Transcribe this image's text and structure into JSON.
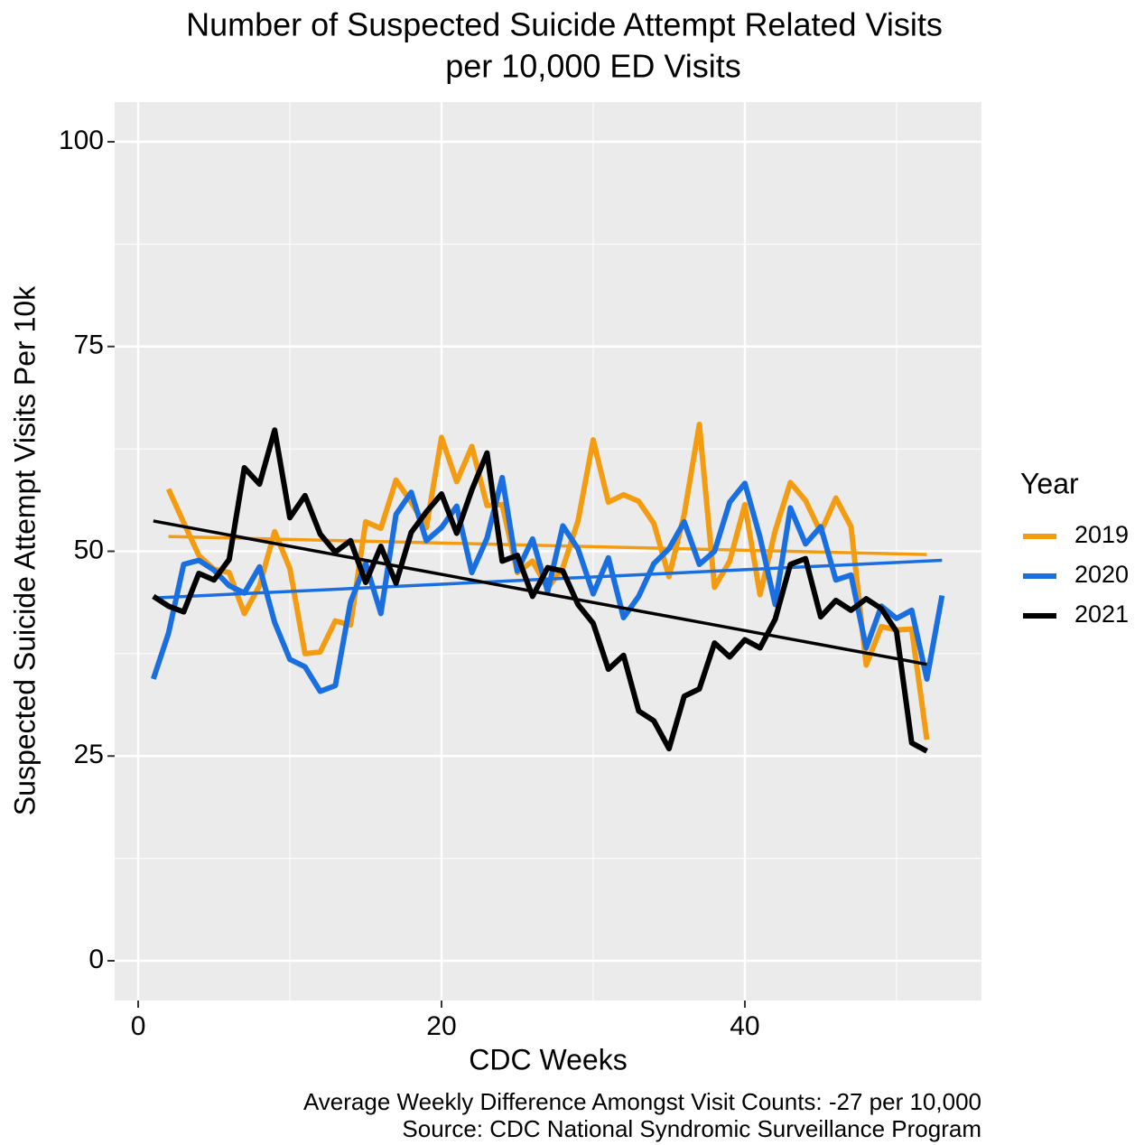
{
  "chart_data": {
    "type": "line",
    "title": [
      "Number of Suspected Suicide Attempt Related Visits",
      "per 10,000 ED Visits"
    ],
    "x_label": "CDC Weeks",
    "y_label": "Suspected Suicide Attempt Visits Per 10k",
    "caption": [
      "Average Weekly Difference Amongst Visit Counts: -27 per 10,000",
      "Source: CDC National Syndromic Surveillance Program"
    ],
    "legend_title": "Year",
    "legend": "right",
    "grid": true,
    "xlim": [
      -1.55,
      55.6
    ],
    "ylim": [
      -4.85,
      104.85
    ],
    "xticks": [
      0,
      20,
      40
    ],
    "yticks": [
      0,
      25,
      50,
      75,
      100
    ],
    "minor_xticks": [
      10,
      30,
      50
    ],
    "minor_yticks": [
      12.5,
      37.5,
      62.5,
      87.5
    ],
    "series": [
      {
        "name": "2019",
        "color": "#f39c12",
        "x": [
          2,
          3,
          4,
          5,
          6,
          7,
          8,
          9,
          10,
          11,
          12,
          13,
          14,
          15,
          16,
          17,
          18,
          19,
          20,
          21,
          22,
          23,
          24,
          25,
          26,
          27,
          28,
          29,
          30,
          31,
          32,
          33,
          34,
          35,
          36,
          37,
          38,
          39,
          40,
          41,
          42,
          43,
          44,
          45,
          46,
          47,
          48,
          49,
          50,
          51,
          52
        ],
        "values": [
          57.6,
          53.5,
          49.5,
          47.8,
          47.4,
          42.4,
          45.8,
          52.4,
          47.9,
          37.5,
          37.7,
          41.5,
          41,
          53.6,
          52.8,
          58.7,
          56,
          52.9,
          63.9,
          58.5,
          62.8,
          55.6,
          55.7,
          47.4,
          48.8,
          45.5,
          48,
          53.7,
          63.6,
          56,
          56.9,
          56.1,
          53.4,
          46.9,
          54.5,
          65.5,
          45.6,
          48.8,
          55.7,
          44.7,
          52.5,
          58.4,
          56.2,
          52.3,
          56.5,
          53,
          36.1,
          40.8,
          40.4,
          40.5,
          27
        ],
        "trend": {
          "x": [
            2,
            52
          ],
          "values": [
            51.8,
            49.6
          ]
        }
      },
      {
        "name": "2020",
        "color": "#1a6fe0",
        "x": [
          1,
          2,
          3,
          4,
          5,
          6,
          7,
          8,
          9,
          10,
          11,
          12,
          13,
          14,
          15,
          16,
          17,
          18,
          19,
          20,
          21,
          22,
          23,
          24,
          25,
          26,
          27,
          28,
          29,
          30,
          31,
          32,
          33,
          34,
          35,
          36,
          37,
          38,
          39,
          40,
          41,
          42,
          43,
          44,
          45,
          46,
          47,
          48,
          49,
          50,
          51,
          52,
          53
        ],
        "values": [
          34.4,
          40,
          48.4,
          48.9,
          47.7,
          45.8,
          44.9,
          48.1,
          41.3,
          36.8,
          35.9,
          32.9,
          33.6,
          43.8,
          48.5,
          42.4,
          54.5,
          57.2,
          51.3,
          52.9,
          55.5,
          47.4,
          51.6,
          59,
          47.6,
          51.5,
          45.1,
          53.1,
          50.3,
          44.8,
          49.2,
          41.9,
          44.5,
          48.5,
          50.3,
          53.6,
          48.4,
          50,
          56,
          58.3,
          51.7,
          43.5,
          55.3,
          50.9,
          53,
          46.5,
          47.1,
          38.2,
          43.3,
          41.8,
          42.8,
          34.4,
          44.6
        ],
        "trend": {
          "x": [
            1,
            53
          ],
          "values": [
            44.3,
            48.9
          ]
        }
      },
      {
        "name": "2021",
        "color": "#000000",
        "x": [
          1,
          2,
          3,
          4,
          5,
          6,
          7,
          8,
          9,
          10,
          11,
          12,
          13,
          14,
          15,
          16,
          17,
          18,
          19,
          20,
          21,
          22,
          23,
          24,
          25,
          26,
          27,
          28,
          29,
          30,
          31,
          32,
          33,
          34,
          35,
          36,
          37,
          38,
          39,
          40,
          41,
          42,
          43,
          44,
          45,
          46,
          47,
          48,
          49,
          50,
          51,
          52
        ],
        "values": [
          44.5,
          43.3,
          42.6,
          47.3,
          46.5,
          49,
          60.2,
          58.2,
          64.8,
          54.1,
          56.8,
          52.1,
          49.9,
          51.3,
          46.2,
          50.6,
          46.1,
          52.3,
          54.8,
          57,
          52.2,
          57.5,
          62,
          48.8,
          49.5,
          44.5,
          48,
          47.6,
          43.5,
          41.2,
          35.6,
          37.3,
          30.5,
          29.3,
          25.9,
          32.3,
          33.2,
          38.8,
          37.1,
          39.2,
          38.2,
          41.7,
          48.4,
          49.1,
          42,
          44,
          42.8,
          44.2,
          43,
          40.2,
          26.6,
          25.6
        ],
        "trend": {
          "x": [
            1,
            52
          ],
          "values": [
            53.7,
            36.2
          ]
        }
      }
    ]
  }
}
